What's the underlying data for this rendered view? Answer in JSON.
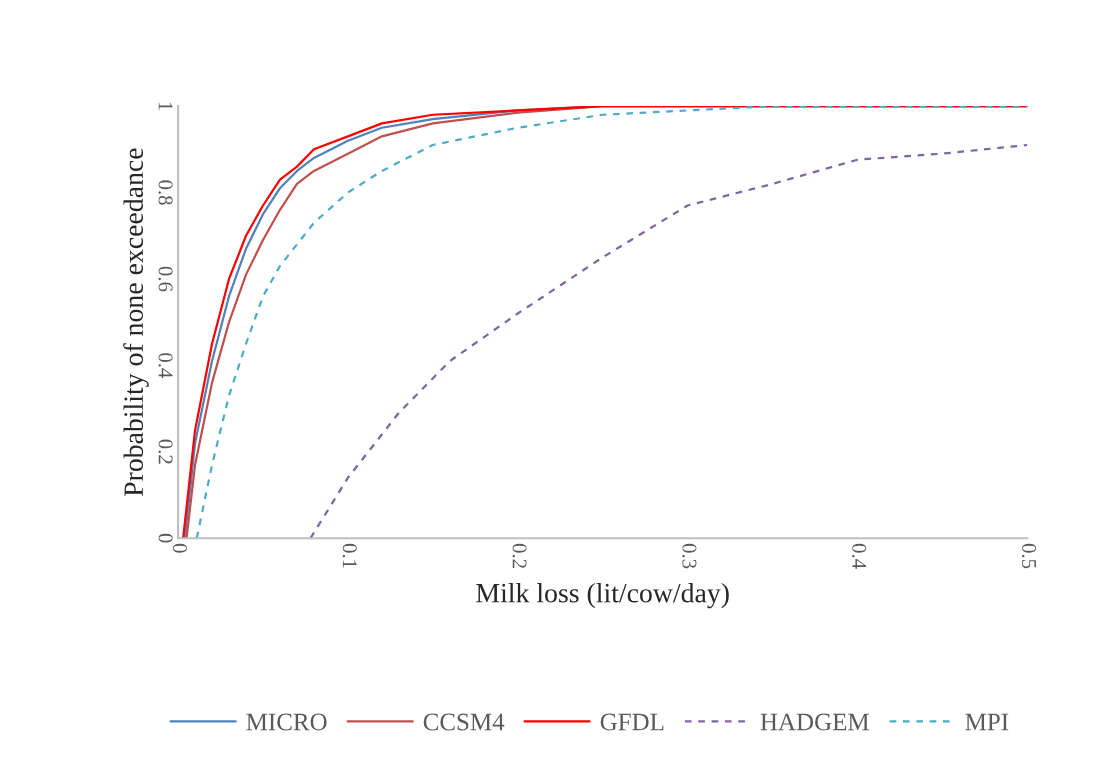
{
  "chart_data": {
    "type": "line",
    "xlabel": "Milk loss (lit/cow/day)",
    "ylabel": "Probability of none exceedance",
    "xlim": [
      0,
      0.5
    ],
    "xticks": [
      0,
      0.1,
      0.2,
      0.3,
      0.4,
      0.5
    ],
    "ylim": [
      0,
      1
    ],
    "yticks": [
      0,
      0.2,
      0.4,
      0.6,
      0.8,
      1
    ],
    "grid": false,
    "legend": "bottom",
    "marker": "none",
    "series": [
      {
        "name": "MICRO",
        "color": "#4f81bd",
        "line_style": "solid",
        "x": [
          0.004,
          0.01,
          0.02,
          0.03,
          0.04,
          0.05,
          0.06,
          0.07,
          0.08,
          0.1,
          0.12,
          0.15,
          0.2,
          0.25,
          0.5
        ],
        "values": [
          0,
          0.22,
          0.41,
          0.56,
          0.67,
          0.75,
          0.81,
          0.85,
          0.88,
          0.92,
          0.95,
          0.97,
          0.99,
          1,
          1
        ]
      },
      {
        "name": "CCSM4",
        "color": "#c0504d",
        "line_style": "solid",
        "x": [
          0.005,
          0.01,
          0.02,
          0.03,
          0.04,
          0.05,
          0.06,
          0.07,
          0.08,
          0.1,
          0.12,
          0.15,
          0.2,
          0.25,
          0.5
        ],
        "values": [
          0,
          0.17,
          0.36,
          0.5,
          0.61,
          0.69,
          0.76,
          0.82,
          0.85,
          0.89,
          0.93,
          0.96,
          0.985,
          1,
          1
        ]
      },
      {
        "name": "GFDL",
        "color": "#ff0000",
        "line_style": "solid",
        "x": [
          0.003,
          0.01,
          0.02,
          0.03,
          0.04,
          0.05,
          0.06,
          0.07,
          0.08,
          0.1,
          0.12,
          0.15,
          0.2,
          0.25,
          0.5
        ],
        "values": [
          0,
          0.25,
          0.45,
          0.6,
          0.7,
          0.77,
          0.83,
          0.86,
          0.9,
          0.93,
          0.96,
          0.98,
          0.99,
          1,
          1
        ]
      },
      {
        "name": "HADGEM",
        "color": "#8064a2",
        "line_style": "dashed",
        "x": [
          0.078,
          0.1,
          0.13,
          0.16,
          0.2,
          0.25,
          0.3,
          0.35,
          0.4,
          0.45,
          0.5
        ],
        "values": [
          0,
          0.14,
          0.29,
          0.41,
          0.52,
          0.65,
          0.77,
          0.82,
          0.876,
          0.89,
          0.91
        ]
      },
      {
        "name": "MPI",
        "color": "#4bacc6",
        "line_style": "dashed",
        "x": [
          0.011,
          0.02,
          0.03,
          0.04,
          0.05,
          0.06,
          0.08,
          0.1,
          0.12,
          0.15,
          0.2,
          0.25,
          0.3,
          0.35,
          0.5
        ],
        "values": [
          0,
          0.17,
          0.33,
          0.45,
          0.56,
          0.63,
          0.73,
          0.8,
          0.85,
          0.91,
          0.95,
          0.98,
          0.99,
          1,
          1
        ]
      }
    ]
  }
}
